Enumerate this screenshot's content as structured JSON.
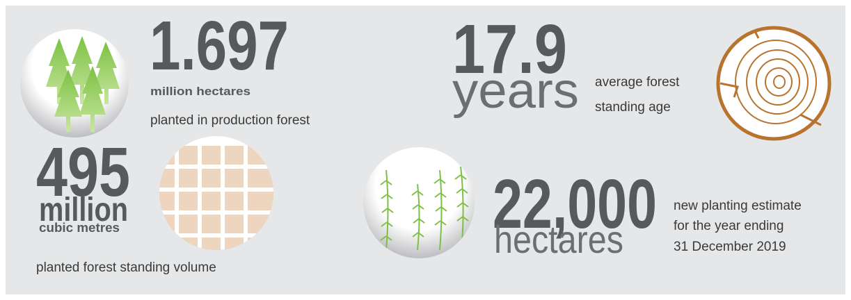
{
  "stats": [
    {
      "value": "1.697",
      "unit_lines": [
        "million hectares"
      ],
      "description_lines": [
        "planted in production forest"
      ]
    },
    {
      "value": "17.9",
      "unit_lines": [
        "years"
      ],
      "description_lines": [
        "average forest",
        "standing age"
      ]
    },
    {
      "value": "495",
      "unit_lines": [
        "million",
        "cubic metres"
      ],
      "description_lines": [
        "planted forest standing volume"
      ]
    },
    {
      "value": "22,000",
      "unit_lines": [
        "hectares"
      ],
      "description_lines": [
        "new planting estimate",
        "for the year ending",
        "31 December 2019"
      ]
    }
  ]
}
